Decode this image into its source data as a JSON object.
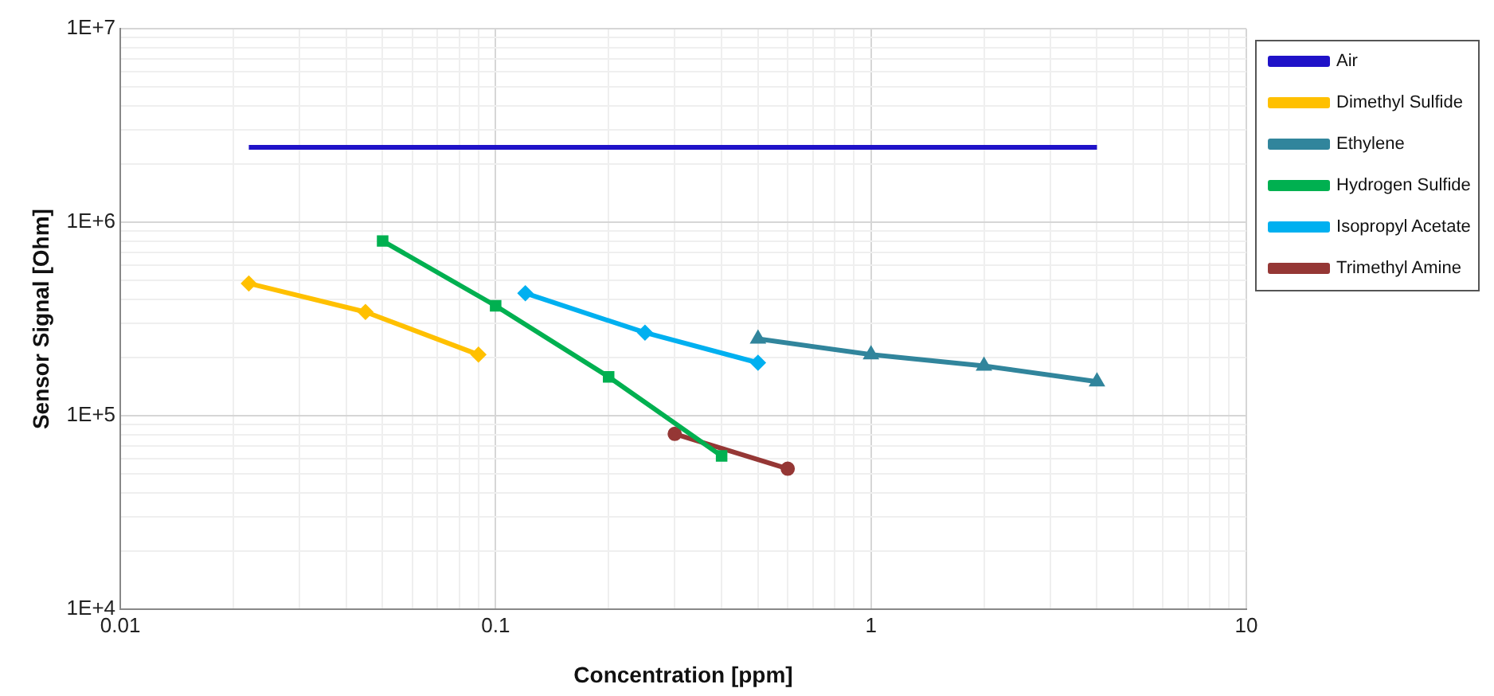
{
  "chart_data": {
    "type": "line",
    "xlabel": "Concentration [ppm]",
    "ylabel": "Sensor Signal [Ohm]",
    "log": "xy",
    "grid": true,
    "legend": "right",
    "line_style": "solid",
    "xlim": [
      0.01,
      10
    ],
    "ylim": [
      10000,
      10000000
    ],
    "xticks": [
      0.01,
      {
        "value": 0.02,
        "label": null
      },
      {
        "value": 0.03,
        "label": null
      },
      {
        "value": 0.04,
        "label": null
      },
      {
        "value": 0.05,
        "label": null
      },
      {
        "value": 0.06,
        "label": null
      },
      {
        "value": 0.07,
        "label": null
      },
      {
        "value": 0.08,
        "label": null
      },
      {
        "value": 0.09,
        "label": null
      },
      0.1,
      {
        "value": 0.2,
        "label": null
      },
      {
        "value": 0.3,
        "label": null
      },
      {
        "value": 0.4,
        "label": null
      },
      {
        "value": 0.5,
        "label": null
      },
      {
        "value": 0.6,
        "label": null
      },
      {
        "value": 0.7,
        "label": null
      },
      {
        "value": 0.8,
        "label": null
      },
      {
        "value": 0.9,
        "label": null
      },
      1,
      {
        "value": 2,
        "label": null
      },
      {
        "value": 3,
        "label": null
      },
      {
        "value": 4,
        "label": null
      },
      {
        "value": 5,
        "label": null
      },
      {
        "value": 6,
        "label": null
      },
      {
        "value": 7,
        "label": null
      },
      {
        "value": 8,
        "label": null
      },
      {
        "value": 9,
        "label": null
      },
      10
    ],
    "yticks": [
      {
        "value": 10000,
        "label": "1E+4"
      },
      {
        "value": 20000,
        "label": null
      },
      {
        "value": 30000,
        "label": null
      },
      {
        "value": 40000,
        "label": null
      },
      {
        "value": 50000,
        "label": null
      },
      {
        "value": 60000,
        "label": null
      },
      {
        "value": 70000,
        "label": null
      },
      {
        "value": 80000,
        "label": null
      },
      {
        "value": 90000,
        "label": null
      },
      {
        "value": 100000,
        "label": "1E+5"
      },
      {
        "value": 200000,
        "label": null
      },
      {
        "value": 300000,
        "label": null
      },
      {
        "value": 400000,
        "label": null
      },
      {
        "value": 500000,
        "label": null
      },
      {
        "value": 600000,
        "label": null
      },
      {
        "value": 700000,
        "label": null
      },
      {
        "value": 800000,
        "label": null
      },
      {
        "value": 900000,
        "label": null
      },
      {
        "value": 1000000,
        "label": "1E+6"
      },
      {
        "value": 2000000,
        "label": null
      },
      {
        "value": 3000000,
        "label": null
      },
      {
        "value": 4000000,
        "label": null
      },
      {
        "value": 5000000,
        "label": null
      },
      {
        "value": 6000000,
        "label": null
      },
      {
        "value": 7000000,
        "label": null
      },
      {
        "value": 8000000,
        "label": null
      },
      {
        "value": 9000000,
        "label": null
      },
      {
        "value": 10000000,
        "label": "1E+7"
      }
    ],
    "series": [
      {
        "name": "Air",
        "color": "#1f12c8",
        "marker": "none",
        "x": [
          0.022,
          4
        ],
        "values": [
          2440000,
          2440000
        ]
      },
      {
        "name": "Dimethyl Sulfide",
        "color": "#ffc000",
        "marker": "diamond",
        "x": [
          0.022,
          0.045,
          0.09
        ],
        "values": [
          483000,
          344000,
          207000
        ]
      },
      {
        "name": "Ethylene",
        "color": "#31859c",
        "marker": "triangle",
        "x": [
          0.5,
          1,
          2,
          4
        ],
        "values": [
          250000,
          207000,
          181000,
          150000
        ]
      },
      {
        "name": "Hydrogen Sulfide",
        "color": "#00b050",
        "marker": "square",
        "x": [
          0.05,
          0.1,
          0.2,
          0.4
        ],
        "values": [
          800000,
          370000,
          159000,
          62000
        ]
      },
      {
        "name": "Isopropyl Acetate",
        "color": "#00b0f0",
        "marker": "diamond",
        "x": [
          0.12,
          0.25,
          0.5
        ],
        "values": [
          430000,
          269000,
          188000
        ]
      },
      {
        "name": "Trimethyl Amine",
        "color": "#953735",
        "marker": "circle",
        "x": [
          0.3,
          0.6
        ],
        "values": [
          80700,
          53300
        ]
      }
    ]
  }
}
